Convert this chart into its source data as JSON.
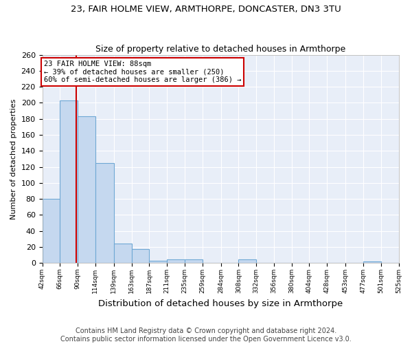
{
  "title1": "23, FAIR HOLME VIEW, ARMTHORPE, DONCASTER, DN3 3TU",
  "title2": "Size of property relative to detached houses in Armthorpe",
  "xlabel": "Distribution of detached houses by size in Armthorpe",
  "ylabel": "Number of detached properties",
  "footer1": "Contains HM Land Registry data © Crown copyright and database right 2024.",
  "footer2": "Contains public sector information licensed under the Open Government Licence v3.0.",
  "bin_labels": [
    "42sqm",
    "66sqm",
    "90sqm",
    "114sqm",
    "139sqm",
    "163sqm",
    "187sqm",
    "211sqm",
    "235sqm",
    "259sqm",
    "284sqm",
    "308sqm",
    "332sqm",
    "356sqm",
    "380sqm",
    "404sqm",
    "428sqm",
    "453sqm",
    "477sqm",
    "501sqm",
    "525sqm"
  ],
  "bin_edges": [
    42,
    66,
    90,
    114,
    139,
    163,
    187,
    211,
    235,
    259,
    284,
    308,
    332,
    356,
    380,
    404,
    428,
    453,
    477,
    501,
    525
  ],
  "bar_heights": [
    80,
    203,
    183,
    125,
    24,
    17,
    3,
    4,
    4,
    0,
    0,
    4,
    0,
    0,
    0,
    0,
    0,
    0,
    2,
    0
  ],
  "bar_color": "#c5d8ef",
  "bar_edge_color": "#6fa8d4",
  "property_size": 88,
  "vline_color": "#cc0000",
  "annotation_text": "23 FAIR HOLME VIEW: 88sqm\n← 39% of detached houses are smaller (250)\n60% of semi-detached houses are larger (386) →",
  "annotation_box_color": "#ffffff",
  "annotation_box_edge": "#cc0000",
  "ylim": [
    0,
    260
  ],
  "fig_background": "#ffffff",
  "plot_background": "#e8eef8",
  "grid_color": "#ffffff",
  "title1_fontsize": 9.5,
  "title2_fontsize": 9,
  "xlabel_fontsize": 9.5,
  "ylabel_fontsize": 8,
  "footer_fontsize": 7,
  "annotation_fontsize": 7.5
}
